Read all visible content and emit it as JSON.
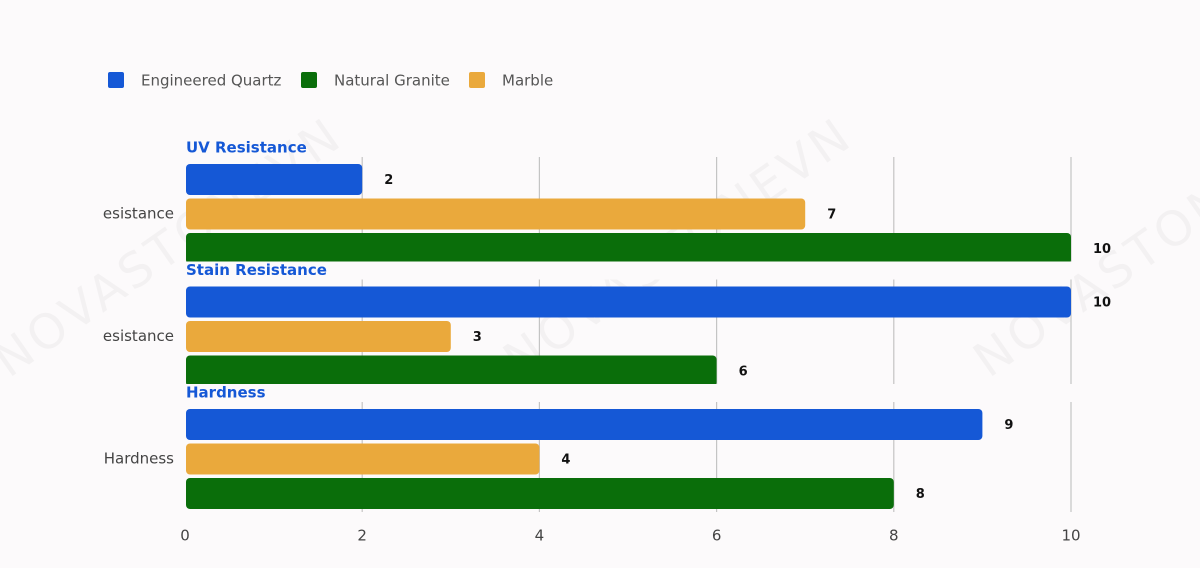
{
  "chart_data": {
    "type": "bar",
    "orientation": "horizontal",
    "group_titles": [
      "UV Resistance",
      "Stain Resistance",
      "Hardness"
    ],
    "categories": [
      "esistance",
      "esistance",
      "Hardness"
    ],
    "series": [
      {
        "name": "Engineered Quartz",
        "color": "#1558d6",
        "values": [
          2,
          10,
          9
        ]
      },
      {
        "name": "Natural Granite",
        "color": "#0a6e0a",
        "values": [
          10,
          6,
          8
        ]
      },
      {
        "name": "Marble",
        "color": "#eaa93c",
        "values": [
          7,
          3,
          4
        ]
      }
    ],
    "xlim": [
      0,
      10
    ],
    "xticks": [
      0,
      2,
      4,
      6,
      8,
      10
    ],
    "grid": true,
    "legend": "top",
    "watermark": "NOVASTONEVN"
  }
}
